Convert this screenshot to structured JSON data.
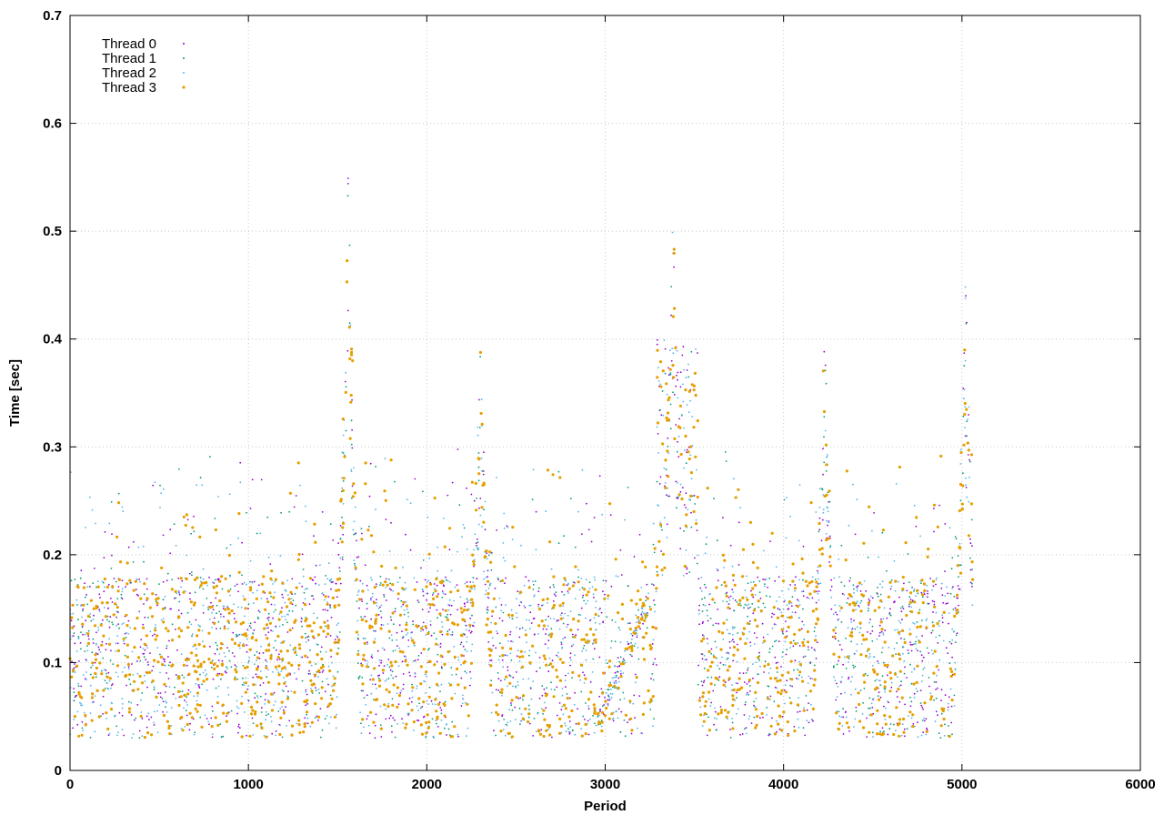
{
  "chart_data": {
    "type": "scatter",
    "title": "",
    "xlabel": "Period",
    "ylabel": "Time [sec]",
    "xlim": [
      0,
      6000
    ],
    "ylim": [
      0,
      0.7
    ],
    "xticks": [
      0,
      1000,
      2000,
      3000,
      4000,
      5000,
      6000
    ],
    "yticks": [
      0,
      0.1,
      0.2,
      0.3,
      0.4,
      0.5,
      0.6,
      0.7
    ],
    "xtick_labels": [
      "0",
      "1000",
      "2000",
      "3000",
      "4000",
      "5000",
      "6000"
    ],
    "ytick_labels": [
      "0",
      "0.1",
      "0.2",
      "0.3",
      "0.4",
      "0.5",
      "0.6",
      "0.7"
    ],
    "grid": true,
    "legend_position": "top-left",
    "series": [
      {
        "name": "Thread 0",
        "color": "#9400d3"
      },
      {
        "name": "Thread 1",
        "color": "#009e73"
      },
      {
        "name": "Thread 2",
        "color": "#56b4e9"
      },
      {
        "name": "Thread 3",
        "color": "#e69f00"
      }
    ],
    "period_range": [
      0,
      5060
    ],
    "spikes": [
      {
        "x": 1560,
        "peak": 0.6
      },
      {
        "x": 2300,
        "peak": 0.42
      },
      {
        "x": 3380,
        "peak": 0.55
      },
      {
        "x": 4230,
        "peak": 0.43
      },
      {
        "x": 5020,
        "peak": 0.48
      }
    ]
  }
}
